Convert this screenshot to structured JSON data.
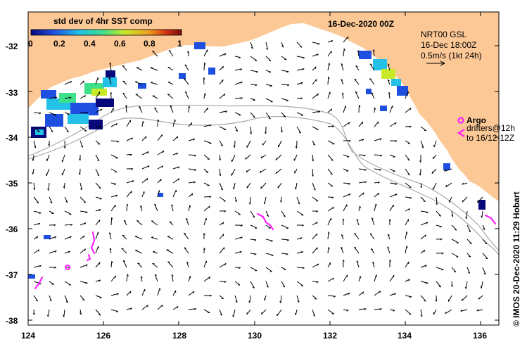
{
  "map": {
    "title": "16-Dec-2020 00Z",
    "colorbar": {
      "label": "std dev of 4hr SST comp",
      "ticks": [
        "0",
        "0.2",
        "0.4",
        "0.6",
        "0.8",
        "1"
      ],
      "colors": [
        "#08087a",
        "#1f4fe0",
        "#23c0e8",
        "#3fe08a",
        "#c8ea28",
        "#f0a020",
        "#d03010",
        "#7a0c0c"
      ]
    },
    "info_lines": [
      "NRT00 GSL",
      "16-Dec 18:00Z",
      "0.5m/s (1kt 24h)"
    ],
    "legend": {
      "argo_label": "Argo",
      "drifters_line1": "drifters@12h",
      "drifters_line2": "to 16/12-12Z",
      "color": "#ff22ff"
    },
    "credit": "©  IMOS 20-Dec-2020 11:29 Hobart",
    "lat_ticks": [
      "-32",
      "-33",
      "-34",
      "-35",
      "-36",
      "-37",
      "-38"
    ],
    "lon_ticks": [
      "124",
      "126",
      "128",
      "130",
      "132",
      "134",
      "136"
    ],
    "colors": {
      "land": "#fcc896",
      "ocean": "#ffffff",
      "contour": "#a9a9a9"
    }
  }
}
